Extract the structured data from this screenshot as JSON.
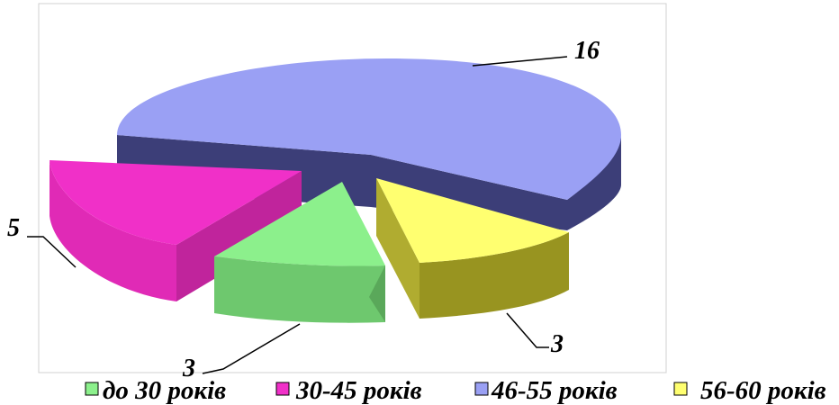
{
  "chart_data": {
    "type": "pie",
    "title": "",
    "categories": [
      "до 30 років",
      "30-45 років",
      "46-55 років",
      "56-60 років"
    ],
    "values": [
      3,
      5,
      16,
      3
    ],
    "colors": [
      "#8cf08c",
      "#f030c8",
      "#9aa0f4",
      "#ffff70"
    ],
    "side_colors": [
      "#5aa85a",
      "#c0249c",
      "#3c3e78",
      "#989420"
    ],
    "legend_placement": "bottom",
    "style": "3d-exploded"
  }
}
